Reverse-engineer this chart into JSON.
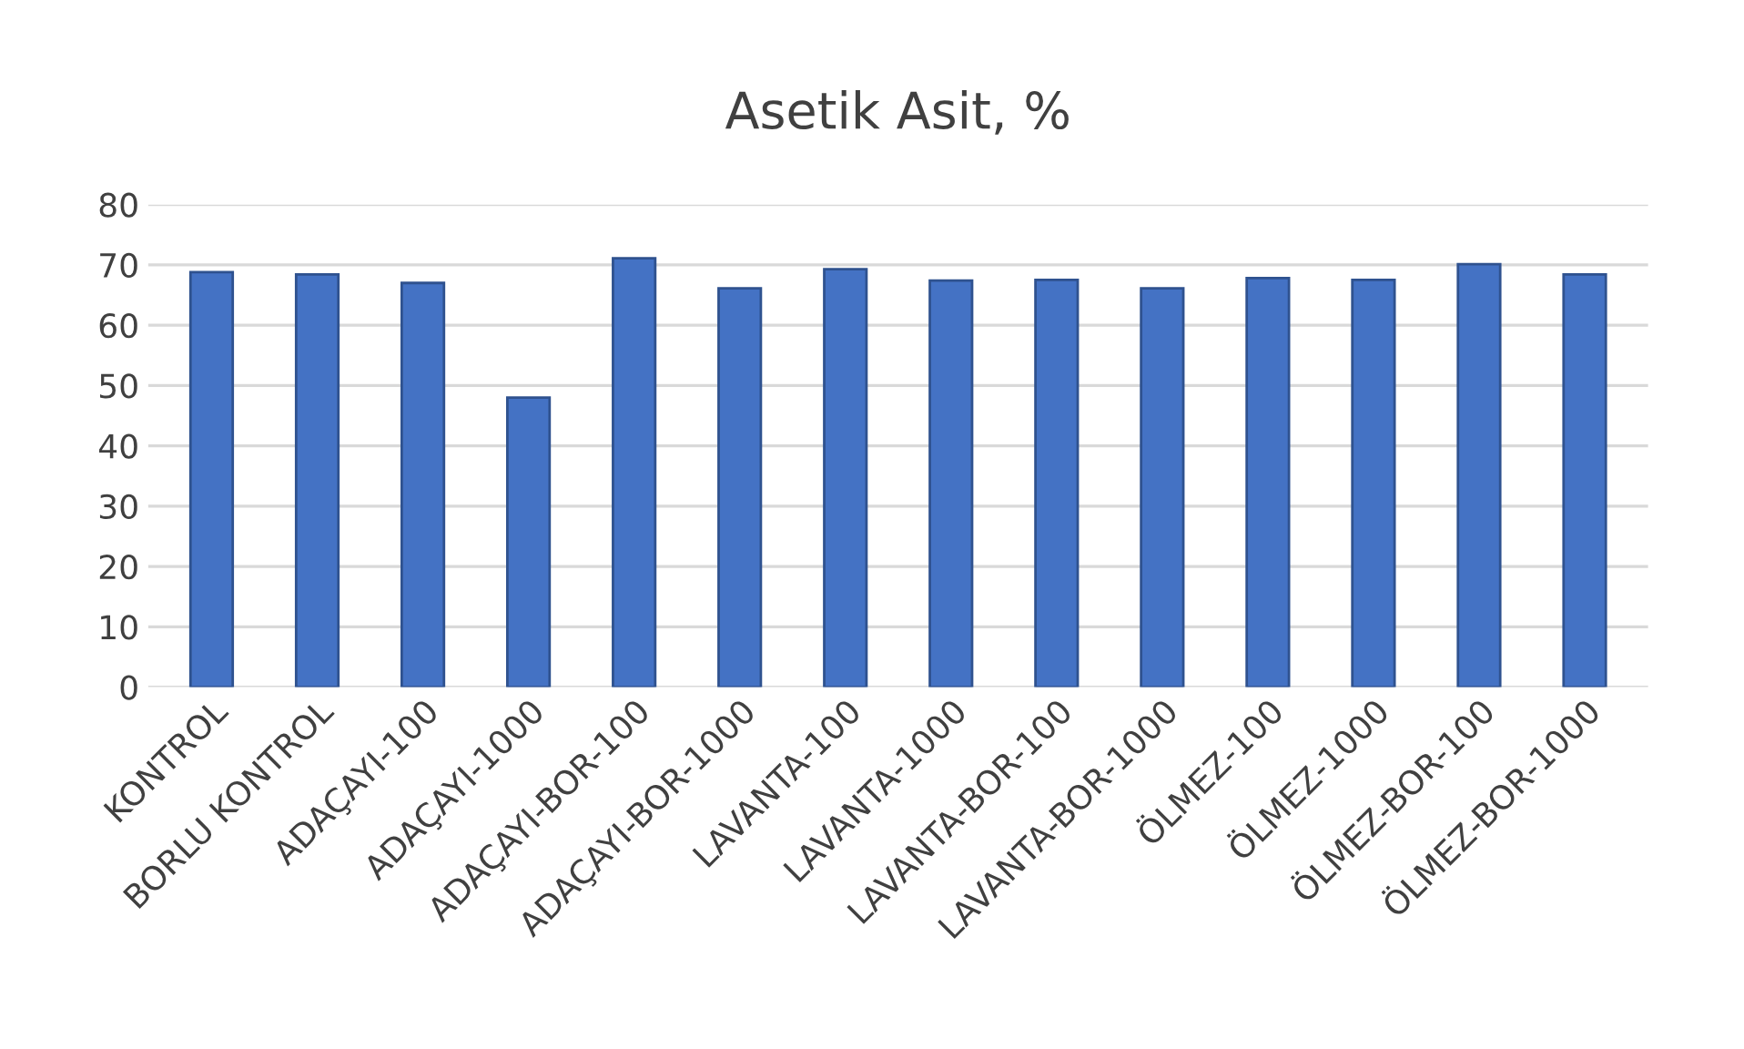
{
  "chart_data": {
    "type": "bar",
    "title": "Asetik Asit, %",
    "categories": [
      "KONTROL",
      "BORLU KONTROL",
      "ADAÇAYI-100",
      "ADAÇAYI-1000",
      "ADAÇAYI-BOR-100",
      "ADAÇAYI-BOR-1000",
      "LAVANTA-100",
      "LAVANTA-1000",
      "LAVANTA-BOR-100",
      "LAVANTA-BOR-1000",
      "ÖLMEZ-100",
      "ÖLMEZ-1000",
      "ÖLMEZ-BOR-100",
      "ÖLMEZ-BOR-1000"
    ],
    "values": [
      68.8,
      68.4,
      67.0,
      48.0,
      71.1,
      66.1,
      69.3,
      67.4,
      67.5,
      66.1,
      67.8,
      67.5,
      70.1,
      68.4
    ],
    "color": "#4472c4",
    "ylim": [
      0,
      80
    ],
    "yticks": [
      0,
      10,
      20,
      30,
      40,
      50,
      60,
      70,
      80
    ],
    "grid": "y"
  }
}
